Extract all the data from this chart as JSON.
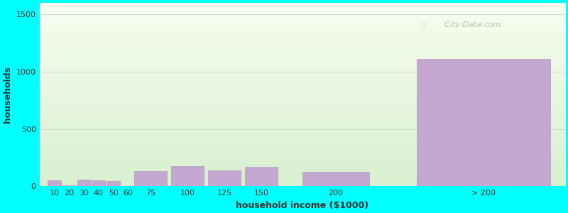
{
  "xlabel": "household income ($1000)",
  "ylabel": "households",
  "background_color": "#00ffff",
  "plot_bg_top": "#f8fdf0",
  "plot_bg_bottom": "#d8f0d0",
  "bar_color": "#c5a8d0",
  "bar_edge_color": "#b898c0",
  "watermark": "City-Data.com",
  "values": [
    55,
    10,
    60,
    55,
    45,
    5,
    130,
    175,
    140,
    170,
    125,
    1110
  ],
  "bar_centers": [
    10,
    20,
    30,
    40,
    50,
    60,
    75,
    100,
    125,
    150,
    200,
    300
  ],
  "bar_widths": [
    9,
    9,
    9,
    9,
    9,
    9,
    22,
    22,
    22,
    22,
    45,
    90
  ],
  "ylim": [
    0,
    1600
  ],
  "yticks": [
    0,
    500,
    1000,
    1500
  ],
  "xtick_positions": [
    10,
    20,
    30,
    40,
    50,
    60,
    75,
    100,
    125,
    150,
    200,
    300
  ],
  "xtick_labels": [
    "10",
    "20",
    "30",
    "40",
    "50",
    "60",
    "75",
    "100",
    "125",
    "150",
    "200",
    "> 200"
  ],
  "xlim": [
    0,
    355
  ],
  "title_fontsize": 12,
  "subtitle_fontsize": 10,
  "axis_label_fontsize": 9,
  "tick_fontsize": 8,
  "title_color": "#111111",
  "subtitle_color": "#008888",
  "axis_label_color": "#333333",
  "tick_color": "#333333",
  "grid_color": "#ccddcc"
}
